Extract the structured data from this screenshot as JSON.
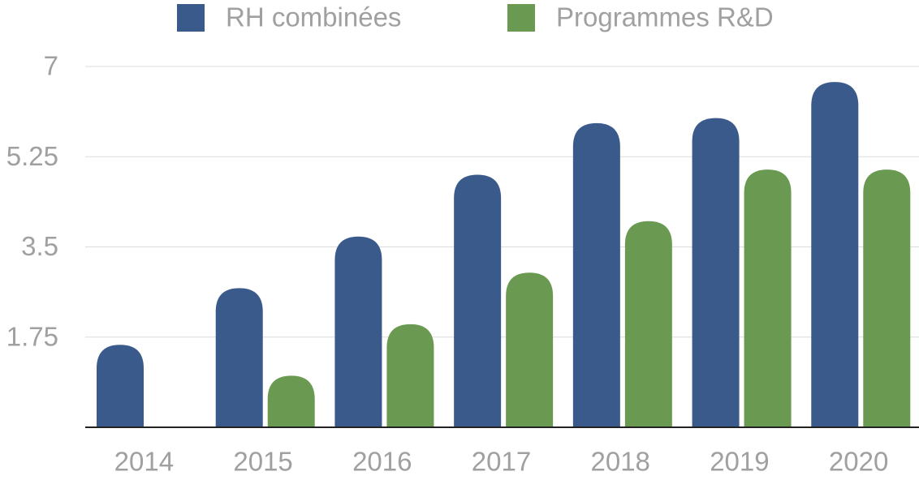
{
  "chart_data": {
    "type": "bar",
    "categories": [
      "2014",
      "2015",
      "2016",
      "2017",
      "2018",
      "2019",
      "2020"
    ],
    "series": [
      {
        "name": "RH combinées",
        "color": "#3a5a8c",
        "values": [
          1.6,
          2.7,
          3.7,
          4.9,
          5.9,
          6.0,
          6.7
        ]
      },
      {
        "name": "Programmes R&D",
        "color": "#6a9a52",
        "values": [
          null,
          1.0,
          2.0,
          3.0,
          4.0,
          5.0,
          5.0
        ]
      }
    ],
    "ylim": [
      0,
      7
    ],
    "yticks": [
      1.75,
      3.5,
      5.25,
      7
    ],
    "grid": true
  }
}
